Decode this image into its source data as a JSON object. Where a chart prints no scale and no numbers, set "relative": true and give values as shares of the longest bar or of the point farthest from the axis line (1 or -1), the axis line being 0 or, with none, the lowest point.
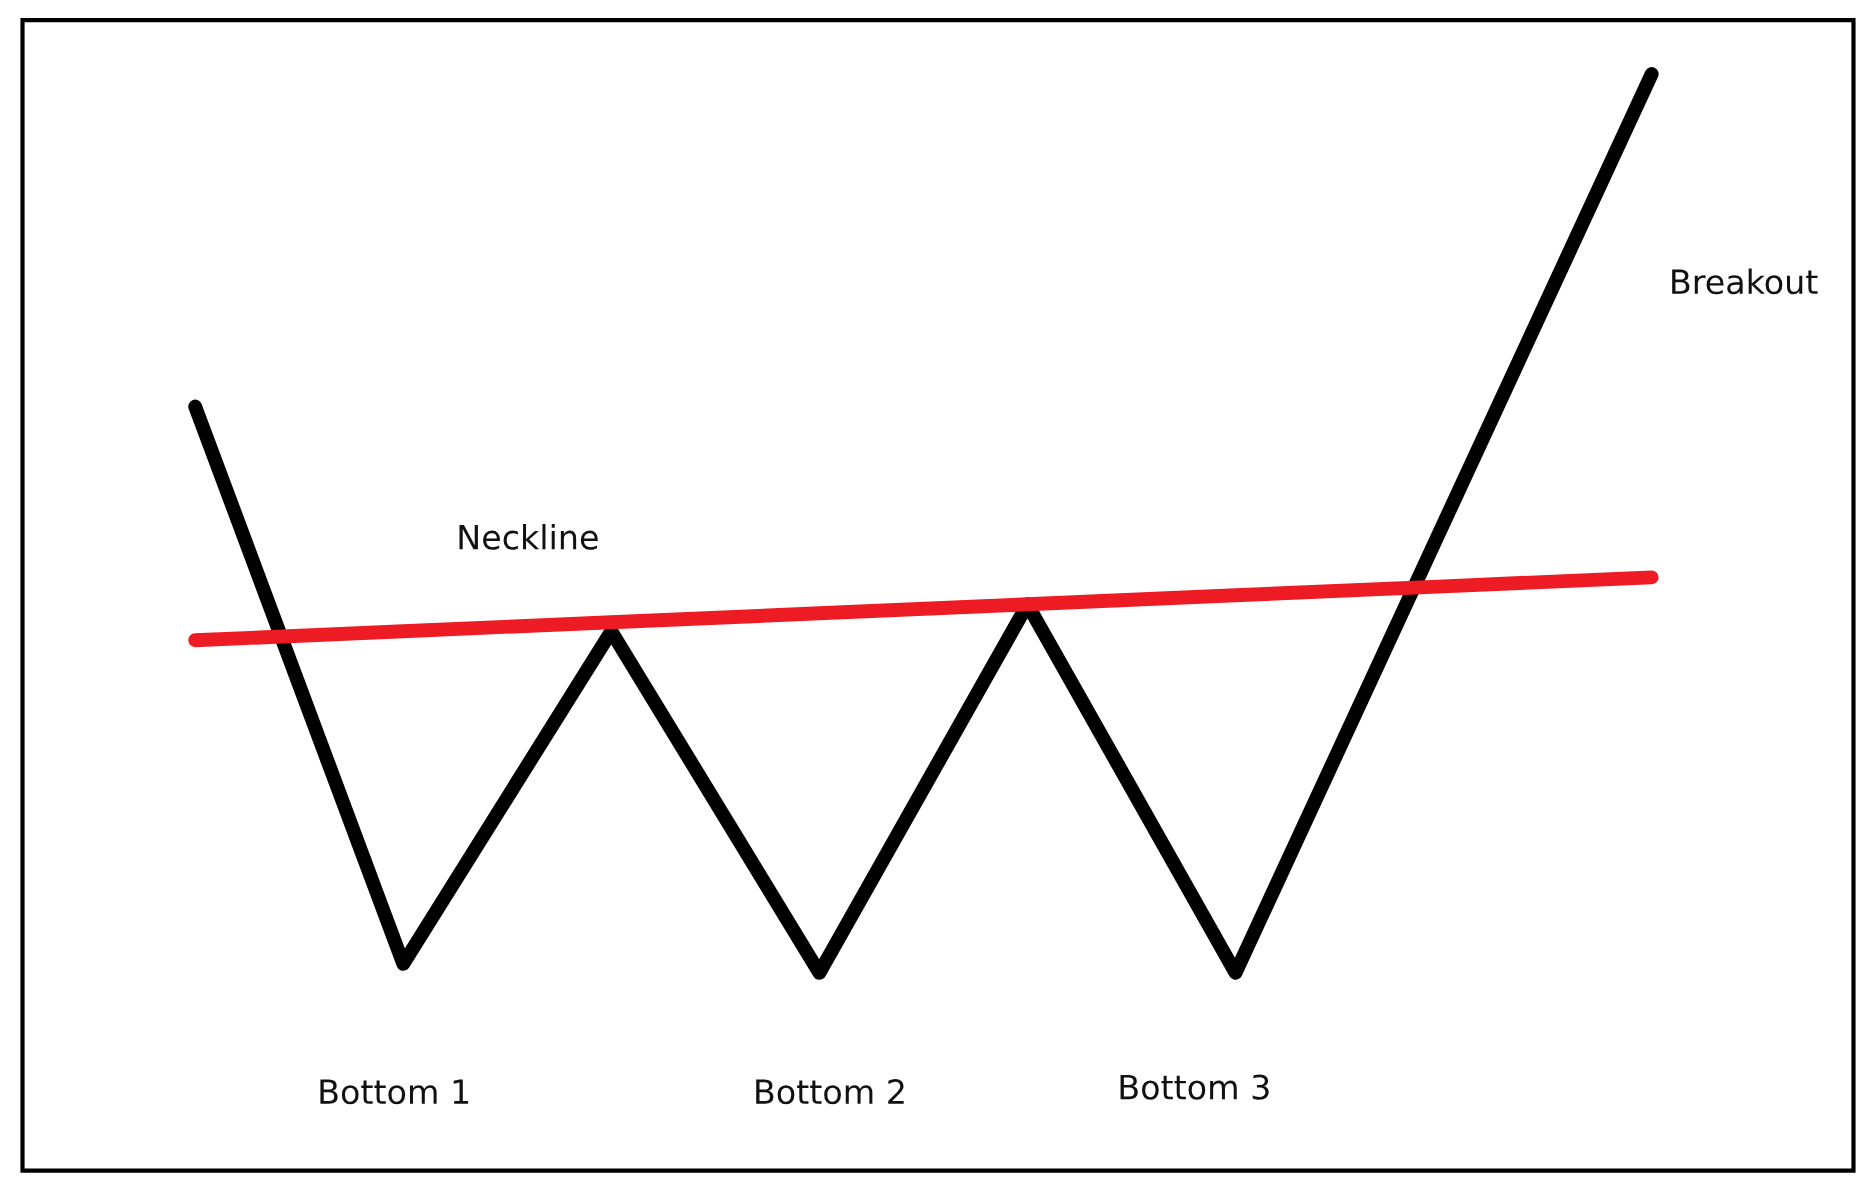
{
  "chart_data": {
    "type": "line",
    "relative": true,
    "categories": [
      null,
      null,
      null,
      null,
      null,
      null,
      null,
      null
    ],
    "series": [
      {
        "color": "#000000",
        "values": [
          0.63,
          0.01,
          0.38,
          0.0,
          0.41,
          0.0,
          0.5,
          1
        ]
      },
      {
        "color": "#ed1c24",
        "values": [
          0.37,
          0.38,
          0.39,
          0.4,
          0.41,
          0.42,
          0.43,
          0.44
        ]
      }
    ],
    "annotations": [
      "Neckline",
      "Breakout",
      "Bottom 1",
      "Bottom 2",
      "Bottom 3"
    ]
  }
}
